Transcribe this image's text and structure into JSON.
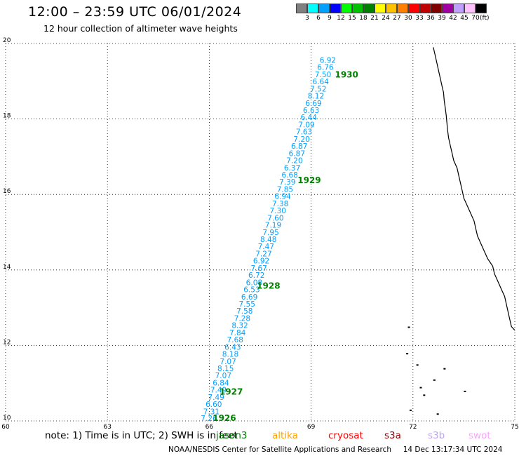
{
  "header": {
    "title": "12:00 – 23:59 UTC 06/01/2024",
    "subtitle": "12 hour collection of altimeter wave heights"
  },
  "colorbar": {
    "swatches": [
      "#808080",
      "#00ffff",
      "#00a0ff",
      "#0000ff",
      "#00ff00",
      "#00c000",
      "#008000",
      "#ffff00",
      "#ffc000",
      "#ff8000",
      "#ff0000",
      "#c00000",
      "#800000",
      "#a000a0",
      "#c0a0ff",
      "#ffc0ff",
      "#000000"
    ],
    "labels": [
      "3",
      "6",
      "9",
      "12",
      "15",
      "18",
      "21",
      "24",
      "27",
      "30",
      "33",
      "36",
      "39",
      "42",
      "45",
      "70"
    ],
    "unit": "(ft)"
  },
  "chart_data": {
    "type": "scatter",
    "title": "12 hour collection of altimeter wave heights",
    "xlabel": "",
    "ylabel": "",
    "xlim": [
      60,
      75
    ],
    "ylim": [
      10,
      20
    ],
    "grid": true,
    "x_ticks": [
      "60",
      "63",
      "66",
      "69",
      "72",
      "75"
    ],
    "y_ticks": [
      "10",
      "12",
      "14",
      "16",
      "18",
      "20"
    ],
    "track_color": "#00a0ff",
    "time_label_color": "#008000",
    "track_points": [
      {
        "x": 65.75,
        "y": 10.0,
        "label": "7.26"
      },
      {
        "x": 65.82,
        "y": 10.18,
        "label": "7.31"
      },
      {
        "x": 65.89,
        "y": 10.37,
        "label": "6.60"
      },
      {
        "x": 65.96,
        "y": 10.56,
        "label": "7.49"
      },
      {
        "x": 66.03,
        "y": 10.75,
        "label": "7.49"
      },
      {
        "x": 66.1,
        "y": 10.94,
        "label": "6.84"
      },
      {
        "x": 66.17,
        "y": 11.13,
        "label": "7.07"
      },
      {
        "x": 66.24,
        "y": 11.32,
        "label": "8.15"
      },
      {
        "x": 66.31,
        "y": 11.51,
        "label": "7.07"
      },
      {
        "x": 66.38,
        "y": 11.7,
        "label": "8.18"
      },
      {
        "x": 66.45,
        "y": 11.89,
        "label": "6.43"
      },
      {
        "x": 66.52,
        "y": 12.08,
        "label": "7.68"
      },
      {
        "x": 66.59,
        "y": 12.27,
        "label": "7.84"
      },
      {
        "x": 66.66,
        "y": 12.46,
        "label": "8.32"
      },
      {
        "x": 66.73,
        "y": 12.65,
        "label": "7.28"
      },
      {
        "x": 66.8,
        "y": 12.84,
        "label": "7.58"
      },
      {
        "x": 66.87,
        "y": 13.03,
        "label": "7.55"
      },
      {
        "x": 66.94,
        "y": 13.22,
        "label": "6.69"
      },
      {
        "x": 67.01,
        "y": 13.41,
        "label": "6.53"
      },
      {
        "x": 67.08,
        "y": 13.6,
        "label": "6.08"
      },
      {
        "x": 67.15,
        "y": 13.79,
        "label": "6.72"
      },
      {
        "x": 67.22,
        "y": 13.98,
        "label": "7.67"
      },
      {
        "x": 67.29,
        "y": 14.17,
        "label": "6.92"
      },
      {
        "x": 67.36,
        "y": 14.36,
        "label": "7.27"
      },
      {
        "x": 67.43,
        "y": 14.55,
        "label": "7.47"
      },
      {
        "x": 67.5,
        "y": 14.74,
        "label": "8.48"
      },
      {
        "x": 67.57,
        "y": 14.93,
        "label": "7.95"
      },
      {
        "x": 67.64,
        "y": 15.12,
        "label": "7.19"
      },
      {
        "x": 67.71,
        "y": 15.31,
        "label": "7.60"
      },
      {
        "x": 67.78,
        "y": 15.5,
        "label": "7.30"
      },
      {
        "x": 67.85,
        "y": 15.69,
        "label": "7.38"
      },
      {
        "x": 67.92,
        "y": 15.88,
        "label": "6.94"
      },
      {
        "x": 67.99,
        "y": 16.07,
        "label": "7.85"
      },
      {
        "x": 68.06,
        "y": 16.26,
        "label": "7.39"
      },
      {
        "x": 68.13,
        "y": 16.45,
        "label": "6.68"
      },
      {
        "x": 68.2,
        "y": 16.64,
        "label": "6.37"
      },
      {
        "x": 68.27,
        "y": 16.83,
        "label": "7.20"
      },
      {
        "x": 68.34,
        "y": 17.02,
        "label": "6.87"
      },
      {
        "x": 68.41,
        "y": 17.21,
        "label": "6.87"
      },
      {
        "x": 68.48,
        "y": 17.4,
        "label": "7.20"
      },
      {
        "x": 68.55,
        "y": 17.59,
        "label": "7.63"
      },
      {
        "x": 68.62,
        "y": 17.78,
        "label": "7.09"
      },
      {
        "x": 68.69,
        "y": 17.97,
        "label": "6.44"
      },
      {
        "x": 68.76,
        "y": 18.16,
        "label": "6.63"
      },
      {
        "x": 68.83,
        "y": 18.35,
        "label": "6.69"
      },
      {
        "x": 68.9,
        "y": 18.54,
        "label": "8.12"
      },
      {
        "x": 68.97,
        "y": 18.73,
        "label": "7.52"
      },
      {
        "x": 69.04,
        "y": 18.92,
        "label": "6.64"
      },
      {
        "x": 69.11,
        "y": 19.11,
        "label": "7.50"
      },
      {
        "x": 69.18,
        "y": 19.3,
        "label": "6.76"
      },
      {
        "x": 69.25,
        "y": 19.49,
        "label": "6.92"
      }
    ],
    "time_labels": [
      {
        "x": 66.1,
        "y": 10.0,
        "label": "1926"
      },
      {
        "x": 66.3,
        "y": 10.7,
        "label": "1927"
      },
      {
        "x": 67.4,
        "y": 13.5,
        "label": "1928"
      },
      {
        "x": 68.6,
        "y": 16.3,
        "label": "1929"
      },
      {
        "x": 69.7,
        "y": 19.1,
        "label": "1930"
      }
    ],
    "coastline": [
      [
        72.6,
        19.9
      ],
      [
        72.65,
        19.7
      ],
      [
        72.7,
        19.5
      ],
      [
        72.75,
        19.3
      ],
      [
        72.8,
        19.1
      ],
      [
        72.85,
        18.9
      ],
      [
        72.9,
        18.7
      ],
      [
        72.92,
        18.5
      ],
      [
        72.95,
        18.3
      ],
      [
        72.98,
        18.1
      ],
      [
        73.0,
        17.9
      ],
      [
        73.02,
        17.7
      ],
      [
        73.05,
        17.5
      ],
      [
        73.1,
        17.3
      ],
      [
        73.15,
        17.1
      ],
      [
        73.2,
        16.9
      ],
      [
        73.3,
        16.7
      ],
      [
        73.35,
        16.5
      ],
      [
        73.4,
        16.3
      ],
      [
        73.45,
        16.1
      ],
      [
        73.5,
        15.9
      ],
      [
        73.6,
        15.7
      ],
      [
        73.7,
        15.5
      ],
      [
        73.8,
        15.3
      ],
      [
        73.85,
        15.1
      ],
      [
        73.9,
        14.9
      ],
      [
        74.0,
        14.7
      ],
      [
        74.1,
        14.5
      ],
      [
        74.2,
        14.3
      ],
      [
        74.35,
        14.1
      ],
      [
        74.4,
        13.9
      ],
      [
        74.5,
        13.7
      ],
      [
        74.6,
        13.5
      ],
      [
        74.7,
        13.3
      ],
      [
        74.75,
        13.1
      ],
      [
        74.8,
        12.9
      ],
      [
        74.85,
        12.7
      ],
      [
        74.9,
        12.5
      ],
      [
        75.0,
        12.4
      ]
    ],
    "islands": [
      [
        71.85,
        12.5
      ],
      [
        71.8,
        11.8
      ],
      [
        72.1,
        11.5
      ],
      [
        72.9,
        11.4
      ],
      [
        72.6,
        11.1
      ],
      [
        72.2,
        10.9
      ],
      [
        72.3,
        10.7
      ],
      [
        71.9,
        10.3
      ],
      [
        73.5,
        10.8
      ],
      [
        72.7,
        10.2
      ]
    ]
  },
  "footer": {
    "note": "note: 1) Time is in UTC; 2) SWH is in feet",
    "satellites": [
      {
        "name": "jason3",
        "color": "#008000"
      },
      {
        "name": "altika",
        "color": "#ffa000"
      },
      {
        "name": "cryosat",
        "color": "#ff0000"
      },
      {
        "name": "s3a",
        "color": "#a00000"
      },
      {
        "name": "s3b",
        "color": "#c0a0ff"
      },
      {
        "name": "swot",
        "color": "#ffa0ff"
      }
    ],
    "credit": "NOAA/NESDIS Center for Satellite Applications and Research",
    "timestamp": "14 Dec 13:17:34 UTC 2024"
  }
}
